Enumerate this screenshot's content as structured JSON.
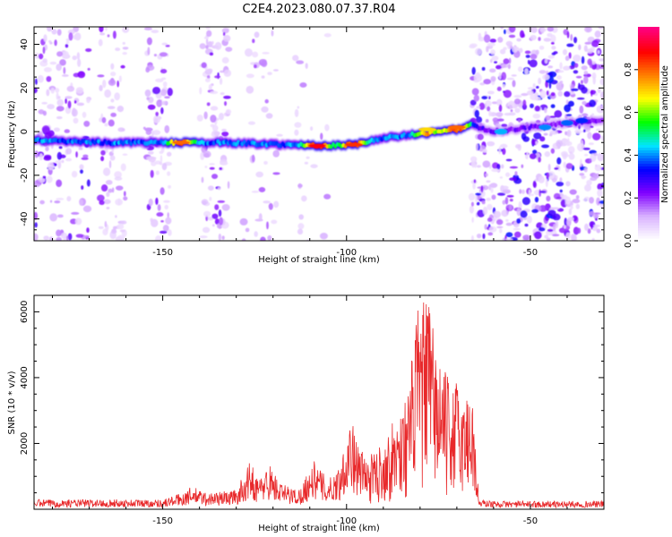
{
  "chart_data": [
    {
      "type": "heatmap",
      "title": "C2E4.2023.080.07.37.R04",
      "xlabel": "Height of straight line (km)",
      "ylabel": "Frequency (Hz)",
      "xlim": [
        -185,
        -30
      ],
      "ylim": [
        -50,
        48
      ],
      "xticks": [
        -150,
        -100,
        -50
      ],
      "yticks": [
        -40,
        -20,
        0,
        20,
        40
      ],
      "colorbar": {
        "label": "Normalized spectral amplitude",
        "range": [
          0,
          1
        ],
        "ticks": [
          "0.0",
          "0.2",
          "0.4",
          "0.6",
          "0.8"
        ],
        "colors": [
          "#ffffff",
          "#d9b3ff",
          "#8000ff",
          "#0000ff",
          "#00e5ff",
          "#00ff00",
          "#ffff00",
          "#ff8000",
          "#ff0000",
          "#ff0080"
        ]
      },
      "ridge_x": [
        -185,
        -175,
        -165,
        -155,
        -145,
        -135,
        -125,
        -115,
        -105,
        -98,
        -90,
        -80,
        -70,
        -66,
        -60,
        -50,
        -40,
        -30
      ],
      "ridge_y": [
        -4,
        -4.5,
        -5,
        -5,
        -5,
        -5,
        -5.5,
        -6,
        -6.5,
        -6,
        -3,
        -1,
        1,
        3,
        0,
        2,
        4,
        5
      ],
      "ridge_peaks": [
        {
          "x": -145,
          "y": -5,
          "amp": 0.8
        },
        {
          "x": -108,
          "y": -6.5,
          "amp": 0.9
        },
        {
          "x": -98,
          "y": -6,
          "amp": 0.85
        },
        {
          "x": -78,
          "y": 1,
          "amp": 0.7
        },
        {
          "x": -70,
          "y": 2,
          "amp": 0.8
        }
      ]
    },
    {
      "type": "line",
      "title": "",
      "xlabel": "Height of straight line (km)",
      "ylabel": "SNR (10 * v/v)",
      "xlim": [
        -185,
        -30
      ],
      "ylim": [
        0,
        6500
      ],
      "xticks": [
        -150,
        -100,
        -50
      ],
      "yticks": [
        2000,
        4000,
        6000
      ],
      "color": "#e8282a",
      "envelope": {
        "x": [
          -185,
          -150,
          -145,
          -142,
          -138,
          -130,
          -126,
          -124,
          -121,
          -118,
          -113,
          -109,
          -105,
          -102,
          -99,
          -97,
          -94,
          -90,
          -86,
          -83,
          -81,
          -79,
          -78,
          -76,
          -74,
          -72,
          -70,
          -68,
          -66,
          -65,
          -64,
          -60,
          -50,
          -40,
          -30
        ],
        "y": [
          300,
          300,
          500,
          700,
          500,
          600,
          1500,
          900,
          1400,
          800,
          600,
          1500,
          900,
          1300,
          2900,
          2000,
          1500,
          2000,
          2800,
          3500,
          5800,
          6000,
          6400,
          5000,
          4200,
          3700,
          3800,
          3200,
          3900,
          2000,
          300,
          250,
          250,
          250,
          250
        ]
      }
    }
  ]
}
